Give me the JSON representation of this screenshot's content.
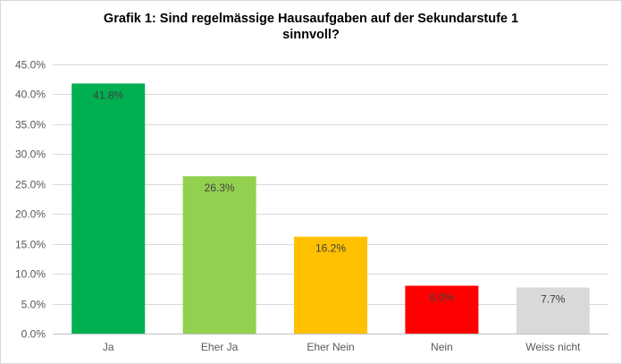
{
  "chart_data": {
    "type": "bar",
    "title_lines": [
      "Grafik 1: Sind regelmässige Hausaufgaben auf der Sekundarstufe 1",
      "sinnvoll?"
    ],
    "categories": [
      "Ja",
      "Eher Ja",
      "Eher Nein",
      "Nein",
      "Weiss nicht"
    ],
    "values": [
      41.8,
      26.3,
      16.2,
      8.0,
      7.7
    ],
    "data_labels": [
      "41.8%",
      "26.3%",
      "16.2%",
      "8.0%",
      "7.7%"
    ],
    "bar_colors": [
      "#00b050",
      "#92d050",
      "#ffc000",
      "#ff0000",
      "#d9d9d9"
    ],
    "ylim": [
      0,
      45
    ],
    "yticks": [
      0,
      5,
      10,
      15,
      20,
      25,
      30,
      35,
      40,
      45
    ],
    "ytick_labels": [
      "0.0%",
      "5.0%",
      "10.0%",
      "15.0%",
      "20.0%",
      "25.0%",
      "30.0%",
      "35.0%",
      "40.0%",
      "45.0%"
    ],
    "grid": true,
    "legend": "none",
    "xlabel": "",
    "ylabel": ""
  }
}
